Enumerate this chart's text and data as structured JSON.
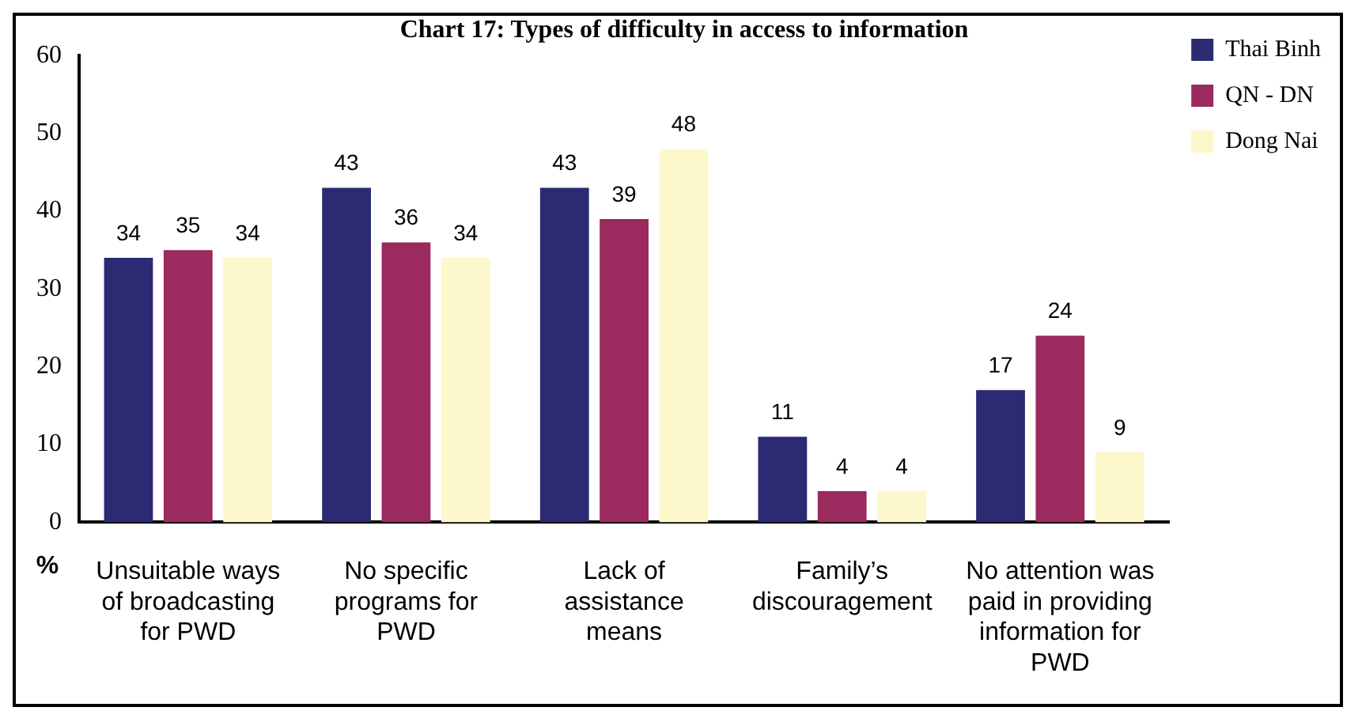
{
  "chart_data": {
    "type": "bar",
    "title": "Chart 17: Types of difficulty in access to information",
    "ylabel": "%",
    "categories": [
      "Unsuitable ways of broadcasting for PWD",
      "No specific programs for PWD",
      "Lack of assistance means",
      "Family’s discouragement",
      "No attention was paid in providing information for PWD"
    ],
    "series": [
      {
        "name": "Thai Binh",
        "color": "#2b2a73",
        "values": [
          34,
          43,
          43,
          11,
          17
        ]
      },
      {
        "name": "QN - DN",
        "color": "#9b2a5e",
        "values": [
          35,
          36,
          39,
          4,
          24
        ]
      },
      {
        "name": "Dong Nai",
        "color": "#fcf8cc",
        "values": [
          34,
          34,
          48,
          4,
          9
        ]
      }
    ],
    "ylim": [
      0,
      60
    ],
    "yticks": [
      0,
      10,
      20,
      30,
      40,
      50,
      60
    ],
    "data_labels": true,
    "legend": "top right"
  }
}
